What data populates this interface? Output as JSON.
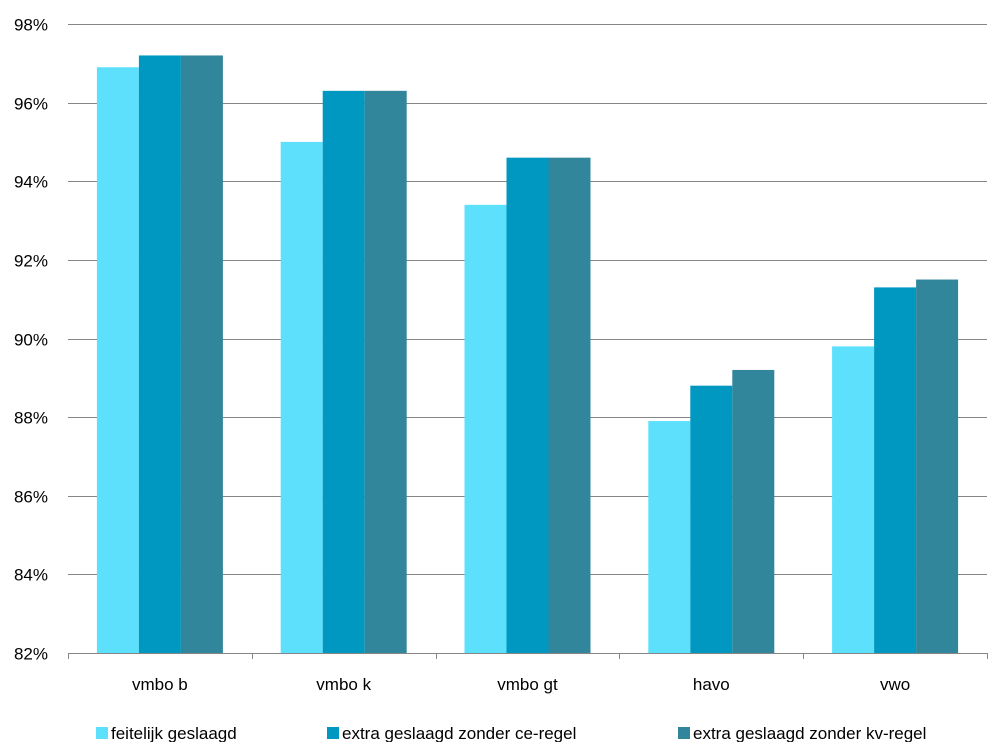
{
  "chart_data": {
    "type": "bar",
    "title": "",
    "xlabel": "",
    "ylabel": "",
    "categories": [
      "vmbo b",
      "vmbo k",
      "vmbo gt",
      "havo",
      "vwo"
    ],
    "series": [
      {
        "name": "feitelijk geslaagd",
        "values": [
          96.9,
          95.0,
          93.4,
          87.9,
          89.8
        ]
      },
      {
        "name": "extra geslaagd zonder ce-regel",
        "values": [
          97.2,
          96.3,
          94.6,
          88.8,
          91.3
        ]
      },
      {
        "name": "extra geslaagd zonder kv-regel",
        "values": [
          97.2,
          96.3,
          94.6,
          89.2,
          91.5
        ]
      }
    ],
    "ylim": [
      82,
      98
    ],
    "yticks": [
      82,
      84,
      86,
      88,
      90,
      92,
      94,
      96,
      98
    ],
    "ytick_labels": [
      "82%",
      "84%",
      "86%",
      "88%",
      "90%",
      "92%",
      "94%",
      "96%",
      "98%"
    ],
    "grid": true,
    "legend_position": "bottom",
    "colors": [
      "#5CE0FC",
      "#0098C0",
      "#31869B"
    ],
    "gridline_color": "#868686"
  }
}
